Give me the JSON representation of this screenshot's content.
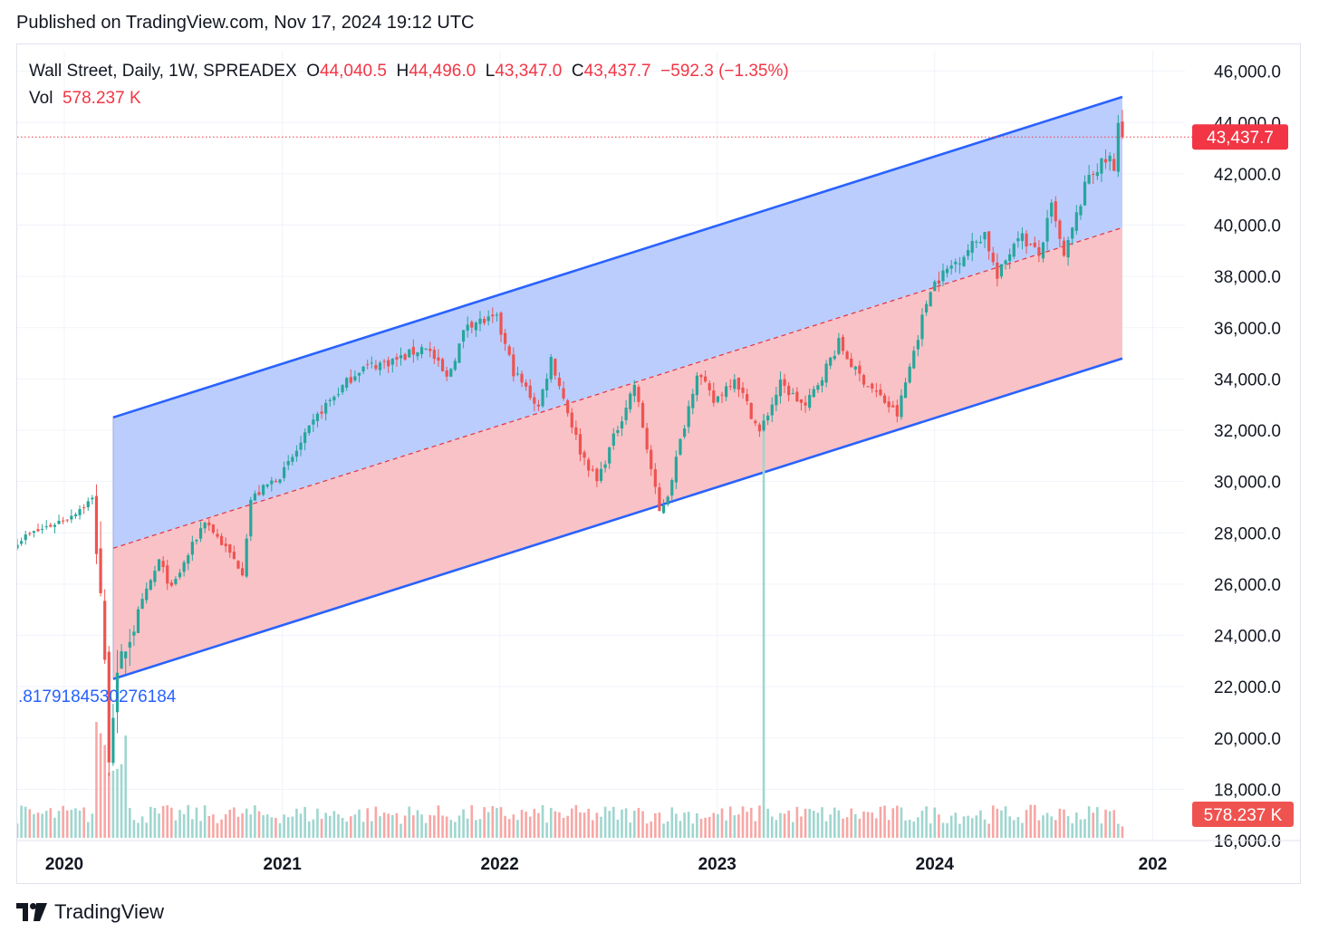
{
  "header": {
    "published": "Published on TradingView.com, Nov 17, 2024 19:12 UTC"
  },
  "legend": {
    "symbol": "Wall Street, Daily, 1W, SPREADEX",
    "open_label": "O",
    "open": "44,040.5",
    "high_label": "H",
    "high": "44,496.0",
    "low_label": "L",
    "low": "43,347.0",
    "close_label": "C",
    "close": "43,437.7",
    "change": "−592.3 (−1.35%)",
    "vol_label": "Vol",
    "vol": "578.237 K"
  },
  "branding": {
    "name": "TradingView"
  },
  "colors": {
    "up": "#26a69a",
    "down": "#ef5350",
    "channel_line": "#2962ff",
    "upper_fill": "#bbcdfd",
    "lower_fill": "#f9c2c7",
    "price_tag": "#f23645"
  },
  "chart_data": {
    "type": "candlestick",
    "y_ticks": [
      "46,000.0",
      "44,000.0",
      "42,000.0",
      "40,000.0",
      "38,000.0",
      "36,000.0",
      "34,000.0",
      "32,000.0",
      "30,000.0",
      "28,000.0",
      "26,000.0",
      "24,000.0",
      "22,000.0",
      "20,000.0",
      "18,000.0",
      "16,000.0"
    ],
    "x_ticks": [
      "2020",
      "2021",
      "2022",
      "2023",
      "2024",
      "202"
    ],
    "ylim": [
      16000,
      46800
    ],
    "xlim": [
      "2019-10-14",
      "2025-02-24"
    ],
    "last_price_label": "43,437.7",
    "last_volume_label": "578.237 K",
    "channel": {
      "start_date": "2020-03-23",
      "end_date": "2024-11-11",
      "upper": [
        32500,
        45000
      ],
      "middle": [
        27400,
        39900
      ],
      "lower": [
        22300,
        34800
      ]
    },
    "channel_label": ".8179184530276184",
    "close_anchors": [
      [
        "2019-10-14",
        27700
      ],
      [
        "2020-01-06",
        28600
      ],
      [
        "2020-02-17",
        29300
      ],
      [
        "2020-03-02",
        25800
      ],
      [
        "2020-03-16",
        19500
      ],
      [
        "2020-03-23",
        21200
      ],
      [
        "2020-04-13",
        23700
      ],
      [
        "2020-06-08",
        26900
      ],
      [
        "2020-06-29",
        25800
      ],
      [
        "2020-08-24",
        28500
      ],
      [
        "2020-10-26",
        26500
      ],
      [
        "2020-11-09",
        29300
      ],
      [
        "2021-01-04",
        30400
      ],
      [
        "2021-03-08",
        32800
      ],
      [
        "2021-05-10",
        34400
      ],
      [
        "2021-07-19",
        34800
      ],
      [
        "2021-08-30",
        35300
      ],
      [
        "2021-10-04",
        34000
      ],
      [
        "2021-11-08",
        36200
      ],
      [
        "2021-12-27",
        36300
      ],
      [
        "2022-01-24",
        34300
      ],
      [
        "2022-03-07",
        32900
      ],
      [
        "2022-03-28",
        34800
      ],
      [
        "2022-05-16",
        31200
      ],
      [
        "2022-06-13",
        30000
      ],
      [
        "2022-08-15",
        33800
      ],
      [
        "2022-09-26",
        28800
      ],
      [
        "2022-10-10",
        29500
      ],
      [
        "2022-11-28",
        34300
      ],
      [
        "2022-12-26",
        33100
      ],
      [
        "2023-01-30",
        34100
      ],
      [
        "2023-03-13",
        31900
      ],
      [
        "2023-04-17",
        33800
      ],
      [
        "2023-05-29",
        32900
      ],
      [
        "2023-07-24",
        35400
      ],
      [
        "2023-08-21",
        34300
      ],
      [
        "2023-10-30",
        32600
      ],
      [
        "2023-12-25",
        37600
      ],
      [
        "2024-03-25",
        39700
      ],
      [
        "2024-04-15",
        37900
      ],
      [
        "2024-05-20",
        39700
      ],
      [
        "2024-06-24",
        38800
      ],
      [
        "2024-07-15",
        40700
      ],
      [
        "2024-08-05",
        38700
      ],
      [
        "2024-09-16",
        42000
      ],
      [
        "2024-10-21",
        42600
      ],
      [
        "2024-10-28",
        42000
      ],
      [
        "2024-11-04",
        44000
      ],
      [
        "2024-11-11",
        43437.7
      ]
    ],
    "last_candle": {
      "date": "2024-11-11",
      "open": 44040.5,
      "high": 44496.0,
      "low": 43347.0,
      "close": 43437.7
    },
    "volume_spike": {
      "date": "2023-03-20",
      "value": 1000
    },
    "volume_typical": 60,
    "volume_last": 578.237
  }
}
